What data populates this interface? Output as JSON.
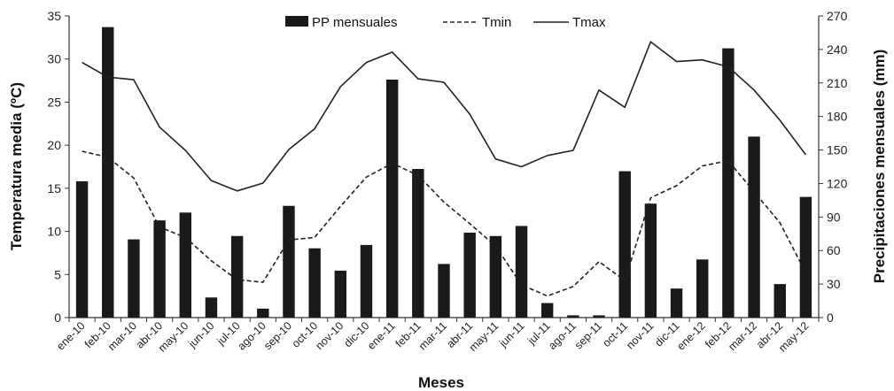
{
  "chart_data": {
    "type": "bar+line",
    "categories": [
      "ene-10",
      "feb-10",
      "mar-10",
      "abr-10",
      "may-10",
      "jun-10",
      "jul-10",
      "ago-10",
      "sep-10",
      "oct-10",
      "nov-10",
      "dic-10",
      "ene-11",
      "feb-11",
      "mar-11",
      "abr-11",
      "may-11",
      "jun-11",
      "jul-11",
      "ago-11",
      "sep-11",
      "oct-11",
      "nov-11",
      "dic-11",
      "ene-12",
      "feb-12",
      "mar-12",
      "abr-12",
      "may-12"
    ],
    "series": [
      {
        "name": "PP mensuales",
        "type": "bar",
        "axis": "right",
        "values": [
          122,
          260,
          70,
          87,
          94,
          18,
          73,
          8,
          100,
          62,
          42,
          65,
          213,
          133,
          48,
          76,
          73,
          82,
          13,
          2,
          2,
          131,
          102,
          26,
          52,
          241,
          162,
          30,
          108
        ]
      },
      {
        "name": "Tmin",
        "type": "line",
        "style": "dashed",
        "axis": "left",
        "values": [
          19.3,
          18.6,
          16.2,
          10.5,
          9.3,
          6.6,
          4.4,
          4.1,
          9.0,
          9.3,
          12.9,
          16.3,
          17.9,
          16.5,
          13.4,
          10.9,
          8.3,
          3.8,
          2.5,
          3.6,
          6.5,
          4.3,
          13.9,
          15.3,
          17.6,
          18.2,
          14.6,
          11.0,
          5.2
        ]
      },
      {
        "name": "Tmax",
        "type": "line",
        "style": "solid",
        "axis": "left",
        "values": [
          29.6,
          27.9,
          27.6,
          22.1,
          19.4,
          15.9,
          14.7,
          15.6,
          19.5,
          21.9,
          26.8,
          29.6,
          30.8,
          27.7,
          27.3,
          23.6,
          18.4,
          17.5,
          18.8,
          19.4,
          26.4,
          24.4,
          32.0,
          29.7,
          29.9,
          29.1,
          26.4,
          22.9,
          18.9
        ]
      }
    ],
    "xlabel": "Meses",
    "ylabel": "Temperatura media (ºC)",
    "y2label": "Precipitaciones mensuales (mm)",
    "ylim": [
      0,
      35
    ],
    "yticks": [
      0,
      5,
      10,
      15,
      20,
      25,
      30,
      35
    ],
    "y2lim": [
      0,
      270
    ],
    "y2ticks": [
      0,
      30,
      60,
      90,
      120,
      150,
      180,
      210,
      240,
      270
    ],
    "grid": false,
    "legend_position": "top-center"
  },
  "colors": {
    "bars": "#1a1a1a",
    "lines": "#222222",
    "axis": "#333333"
  }
}
